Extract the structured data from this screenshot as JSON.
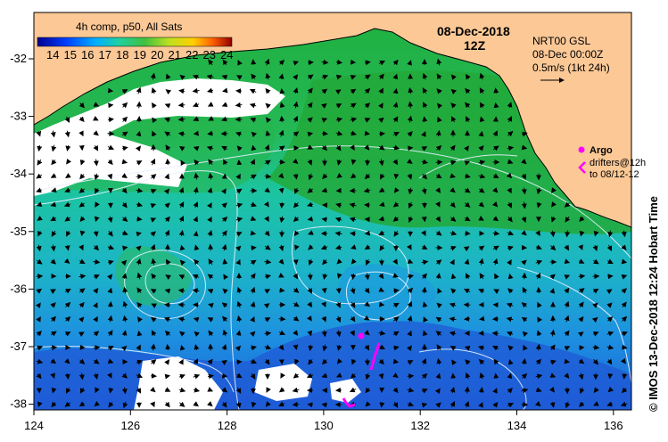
{
  "map": {
    "colorbar_title": "4h comp, p50, All Sats",
    "colorbar_ticks": [
      "14",
      "15",
      "16",
      "17",
      "18",
      "19",
      "20",
      "21",
      "22",
      "23",
      "24"
    ],
    "date": "08-Dec-2018",
    "time": "12Z",
    "current_info": [
      "NRT00 GSL",
      "08-Dec 00:00Z",
      "0.5m/s (1kt 24h)"
    ],
    "legend_argo": "Argo",
    "legend_drifters": [
      "drifters@12h",
      "to 08/12-12"
    ],
    "side_credit": "© IMOS 13-Dec-2018 12:24 Hobart Time",
    "x_ticks": [
      "124",
      "126",
      "128",
      "130",
      "132",
      "134",
      "136"
    ],
    "y_ticks": [
      "-32",
      "-33",
      "-34",
      "-35",
      "-36",
      "-37",
      "-38"
    ]
  },
  "colors": {
    "land": "#fbc896",
    "ocean_warm": "#1ea63c",
    "ocean_mid": "#19c89a",
    "ocean_cool": "#1d8fe0",
    "ocean_cold": "#1f5fd8",
    "cloud": "#ffffff",
    "drifter": "#ff00ff",
    "contour": "#e8f0ff"
  }
}
